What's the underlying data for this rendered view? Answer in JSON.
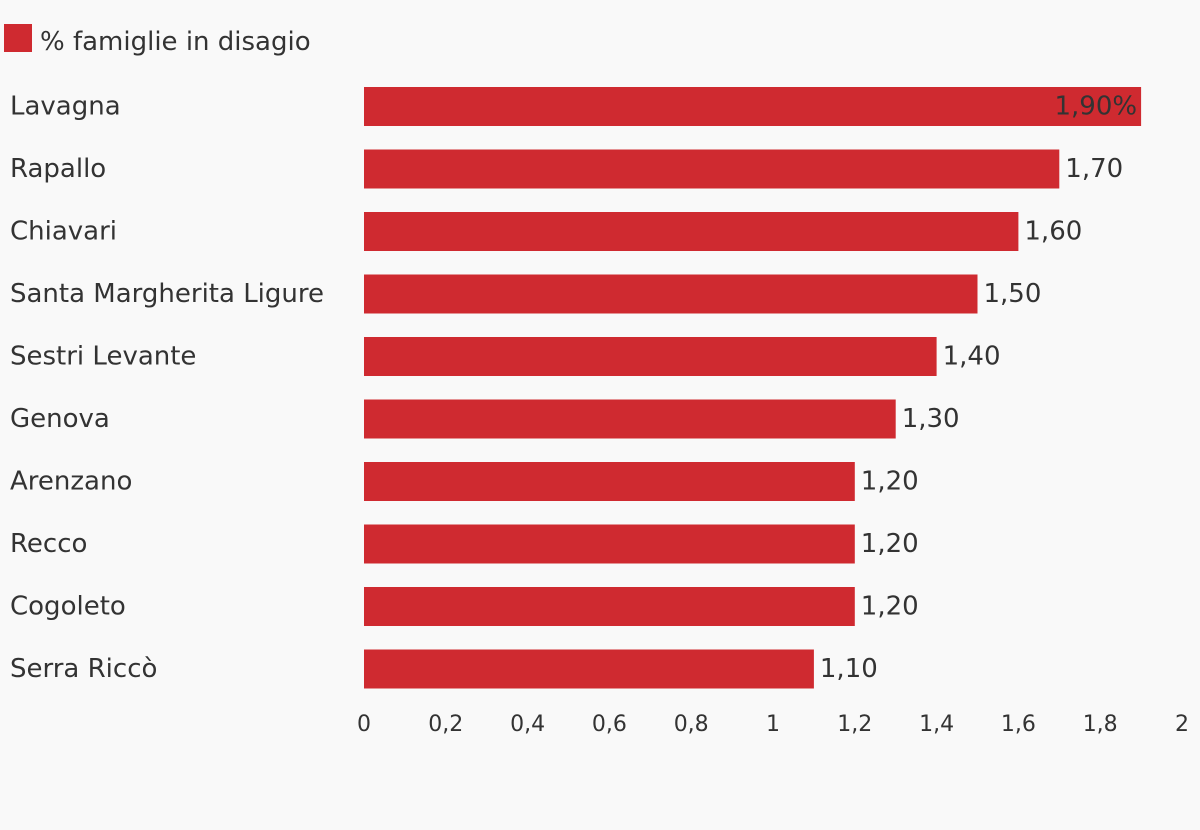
{
  "colors": {
    "bar": "#cf2a30",
    "text": "#333333",
    "background": "#f9f9f9"
  },
  "chart_data": {
    "type": "bar",
    "orientation": "horizontal",
    "series": [
      {
        "name": "% famiglie in disagio",
        "values": [
          1.9,
          1.7,
          1.6,
          1.5,
          1.4,
          1.3,
          1.2,
          1.2,
          1.2,
          1.1
        ]
      }
    ],
    "categories": [
      "Lavagna",
      "Rapallo",
      "Chiavari",
      "Santa Margherita Ligure",
      "Sestri Levante",
      "Genova",
      "Arenzano",
      "Recco",
      "Cogoleto",
      "Serra Riccò"
    ],
    "data_labels": [
      "1,90%",
      "1,70",
      "1,60",
      "1,50",
      "1,40",
      "1,30",
      "1,20",
      "1,20",
      "1,20",
      "1,10"
    ],
    "x_ticks": [
      "0",
      "0,2",
      "0,4",
      "0,6",
      "0,8",
      "1",
      "1,2",
      "1,4",
      "1,6",
      "1,8",
      "2"
    ],
    "xlim": [
      0,
      2
    ],
    "grid": false,
    "legend_position": "top-left"
  }
}
